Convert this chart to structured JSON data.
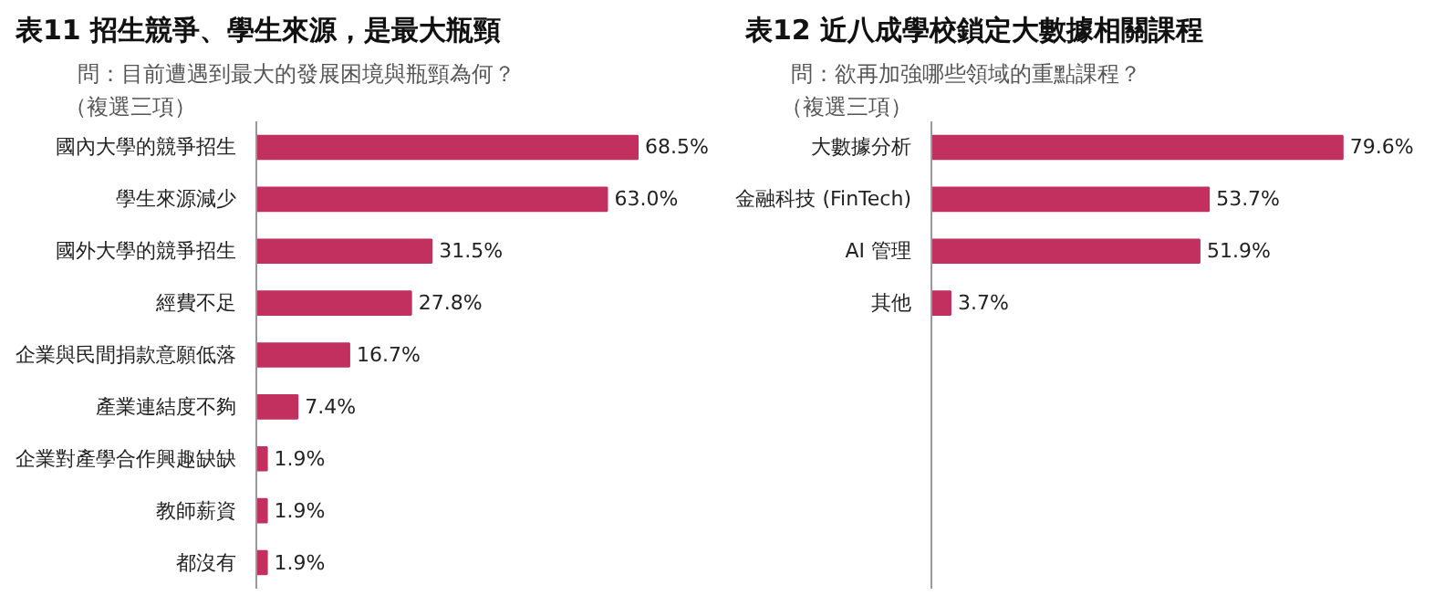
{
  "chart_data": [
    {
      "type": "bar",
      "orientation": "horizontal",
      "title": "表11 招生競爭、學生來源，是最大瓶頸",
      "subtitle": "問：目前遭遇到最大的發展困境與瓶頸為何？",
      "annotations": [
        "（複選三項）"
      ],
      "categories": [
        "國內大學的競爭招生",
        "學生來源減少",
        "國外大學的競爭招生",
        "經費不足",
        "企業與民間捐款意願低落",
        "產業連結度不夠",
        "企業對產學合作興趣缺缺",
        "教師薪資",
        "都沒有"
      ],
      "values": [
        68.5,
        63.0,
        31.5,
        27.8,
        16.7,
        7.4,
        1.9,
        1.9,
        1.9
      ],
      "value_labels": [
        "68.5%",
        "63.0%",
        "31.5%",
        "27.8%",
        "16.7%",
        "7.4%",
        "1.9%",
        "1.9%",
        "1.9%"
      ],
      "color": "#c2305f",
      "tick_labels": "y",
      "grid": false
    },
    {
      "type": "bar",
      "orientation": "horizontal",
      "title": "表12 近八成學校鎖定大數據相關課程",
      "subtitle": "問：欲再加強哪些領域的重點課程？",
      "annotations": [
        "（複選三項）"
      ],
      "categories": [
        "大數據分析",
        "金融科技 (FinTech)",
        "AI 管理",
        "其他"
      ],
      "values": [
        79.6,
        53.7,
        51.9,
        3.7
      ],
      "value_labels": [
        "79.6%",
        "53.7%",
        "51.9%",
        "3.7%"
      ],
      "color": "#c2305f",
      "tick_labels": "y",
      "grid": false
    }
  ]
}
